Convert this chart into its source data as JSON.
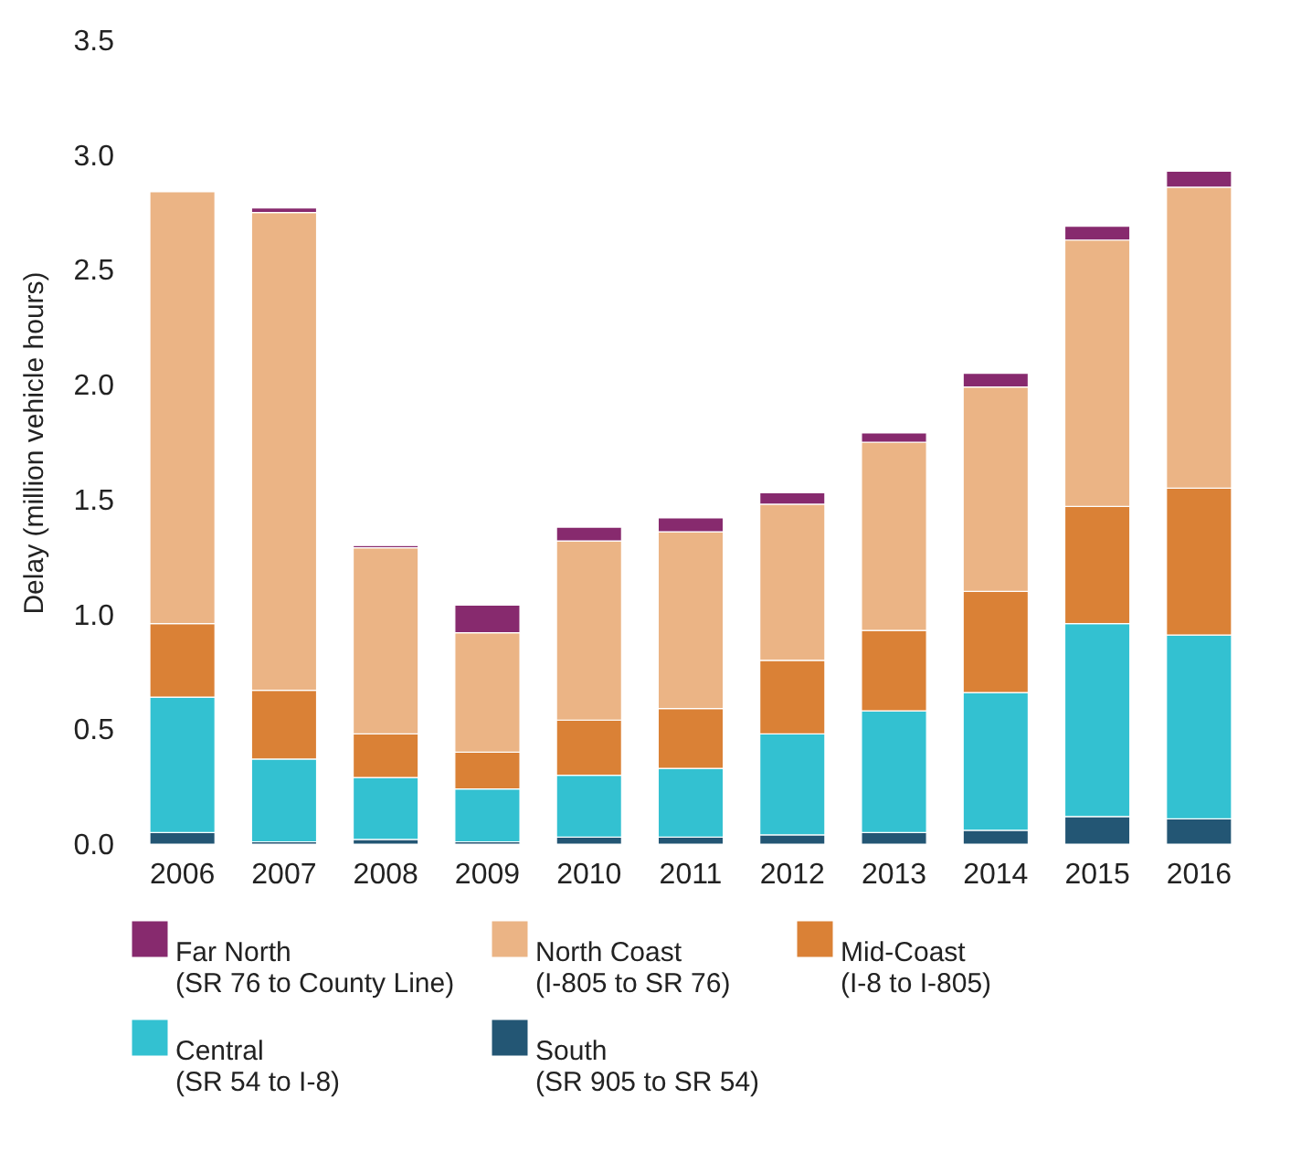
{
  "chart_data": {
    "type": "bar",
    "stacked": true,
    "ylabel": "Delay (million vehicle hours)",
    "categories": [
      "2006",
      "2007",
      "2008",
      "2009",
      "2010",
      "2011",
      "2012",
      "2013",
      "2014",
      "2015",
      "2016"
    ],
    "ylim": [
      0,
      3.5
    ],
    "yticks": [
      {
        "value": 0,
        "label": "0.0"
      },
      0.5,
      {
        "value": 1,
        "label": "1.0"
      },
      1.5,
      {
        "value": 2,
        "label": "2.0"
      },
      2.5,
      {
        "value": 3,
        "label": "3.0"
      },
      3.5
    ],
    "grid": false,
    "legend": "bottom",
    "series": [
      {
        "name": "South (SR 905 to SR 54)",
        "color": "#235674",
        "values": [
          0.05,
          0.01,
          0.02,
          0.01,
          0.03,
          0.03,
          0.04,
          0.05,
          0.06,
          0.12,
          0.11
        ]
      },
      {
        "name": "Central (SR 54 to I-8)",
        "color": "#33c1d1",
        "values": [
          0.59,
          0.36,
          0.27,
          0.23,
          0.27,
          0.3,
          0.44,
          0.53,
          0.6,
          0.84,
          0.8
        ]
      },
      {
        "name": "Mid-Coast (I-8 to I-805)",
        "color": "#da8136",
        "values": [
          0.32,
          0.3,
          0.19,
          0.16,
          0.24,
          0.26,
          0.32,
          0.35,
          0.44,
          0.51,
          0.64
        ]
      },
      {
        "name": "North Coast (I-805 to SR 76)",
        "color": "#ebb485",
        "values": [
          1.88,
          2.08,
          0.81,
          0.52,
          0.78,
          0.77,
          0.68,
          0.82,
          0.89,
          1.16,
          1.31
        ]
      },
      {
        "name": "Far North (SR 76 to County Line)",
        "color": "#872a6e",
        "values": [
          null,
          0.02,
          0.01,
          0.12,
          0.06,
          0.06,
          0.05,
          0.04,
          0.06,
          0.06,
          0.07
        ]
      }
    ]
  }
}
